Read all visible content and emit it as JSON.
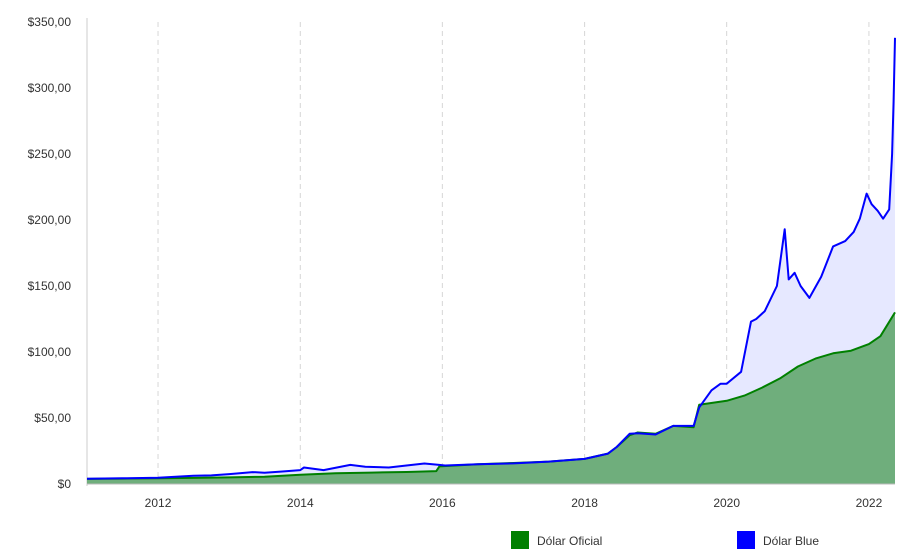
{
  "chart_data": {
    "type": "area",
    "x_type": "date",
    "xlim": [
      "2011-01-01",
      "2022-05-15"
    ],
    "ylim": [
      0,
      350
    ],
    "y_ticks": [
      {
        "value": 0,
        "label": "$0"
      },
      {
        "value": 50,
        "label": "$50,00"
      },
      {
        "value": 100,
        "label": "$100,00"
      },
      {
        "value": 150,
        "label": "$150,00"
      },
      {
        "value": 200,
        "label": "$200,00"
      },
      {
        "value": 250,
        "label": "$250,00"
      },
      {
        "value": 300,
        "label": "$300,00"
      },
      {
        "value": 350,
        "label": "$350,00"
      }
    ],
    "x_ticks": [
      {
        "value": "2012-01-01",
        "label": "2012"
      },
      {
        "value": "2014-01-01",
        "label": "2014"
      },
      {
        "value": "2016-01-01",
        "label": "2016"
      },
      {
        "value": "2018-01-01",
        "label": "2018"
      },
      {
        "value": "2020-01-01",
        "label": "2020"
      },
      {
        "value": "2022-01-01",
        "label": "2022"
      }
    ],
    "vertical_grid": true,
    "legend_position": "bottom",
    "series": [
      {
        "name": "Dólar Oficial",
        "color": "#008000",
        "fill": "#6fae7c",
        "points": [
          [
            "2011-01-01",
            3.9
          ],
          [
            "2011-07-01",
            4.1
          ],
          [
            "2012-01-01",
            4.3
          ],
          [
            "2012-07-01",
            4.6
          ],
          [
            "2013-01-01",
            5.0
          ],
          [
            "2013-07-01",
            5.5
          ],
          [
            "2014-01-01",
            7.0
          ],
          [
            "2014-07-01",
            8.1
          ],
          [
            "2015-01-01",
            8.6
          ],
          [
            "2015-07-01",
            9.1
          ],
          [
            "2015-12-01",
            9.8
          ],
          [
            "2015-12-17",
            13.3
          ],
          [
            "2016-07-01",
            15.0
          ],
          [
            "2017-01-01",
            15.9
          ],
          [
            "2017-07-01",
            17.0
          ],
          [
            "2018-01-01",
            19.0
          ],
          [
            "2018-05-01",
            23.0
          ],
          [
            "2018-06-15",
            28.0
          ],
          [
            "2018-08-20",
            37.0
          ],
          [
            "2018-10-01",
            39.0
          ],
          [
            "2019-01-01",
            38.0
          ],
          [
            "2019-04-01",
            44.0
          ],
          [
            "2019-07-15",
            43.0
          ],
          [
            "2019-08-13",
            60.0
          ],
          [
            "2020-01-01",
            63.0
          ],
          [
            "2020-04-01",
            67.0
          ],
          [
            "2020-07-01",
            73.0
          ],
          [
            "2020-10-01",
            80.0
          ],
          [
            "2021-01-01",
            89.0
          ],
          [
            "2021-04-01",
            95.0
          ],
          [
            "2021-07-01",
            99.0
          ],
          [
            "2021-10-01",
            101.0
          ],
          [
            "2022-01-01",
            106.0
          ],
          [
            "2022-03-01",
            112.0
          ],
          [
            "2022-05-15",
            130.0
          ]
        ]
      },
      {
        "name": "Dólar Blue",
        "color": "#0000ff",
        "fill": "#e6e8ff",
        "points": [
          [
            "2011-01-01",
            4.0
          ],
          [
            "2011-07-01",
            4.3
          ],
          [
            "2012-01-01",
            4.7
          ],
          [
            "2012-04-01",
            5.5
          ],
          [
            "2012-07-01",
            6.3
          ],
          [
            "2012-10-01",
            6.5
          ],
          [
            "2013-01-01",
            7.5
          ],
          [
            "2013-05-01",
            9.0
          ],
          [
            "2013-07-01",
            8.5
          ],
          [
            "2013-10-01",
            9.5
          ],
          [
            "2014-01-01",
            10.5
          ],
          [
            "2014-01-20",
            12.5
          ],
          [
            "2014-05-01",
            10.5
          ],
          [
            "2014-09-15",
            14.5
          ],
          [
            "2014-12-01",
            13.0
          ],
          [
            "2015-04-01",
            12.5
          ],
          [
            "2015-07-01",
            14.0
          ],
          [
            "2015-10-01",
            15.5
          ],
          [
            "2015-12-16",
            14.5
          ],
          [
            "2016-01-15",
            14.0
          ],
          [
            "2016-07-01",
            15.0
          ],
          [
            "2017-01-01",
            15.6
          ],
          [
            "2017-07-01",
            17.0
          ],
          [
            "2018-01-01",
            19.0
          ],
          [
            "2018-05-01",
            23.0
          ],
          [
            "2018-06-15",
            28.0
          ],
          [
            "2018-08-20",
            38.0
          ],
          [
            "2018-10-01",
            38.5
          ],
          [
            "2019-01-01",
            37.5
          ],
          [
            "2019-04-01",
            44.0
          ],
          [
            "2019-07-15",
            44.0
          ],
          [
            "2019-08-13",
            58.0
          ],
          [
            "2019-10-15",
            71.0
          ],
          [
            "2019-12-01",
            76.0
          ],
          [
            "2020-01-01",
            76.0
          ],
          [
            "2020-03-15",
            85.0
          ],
          [
            "2020-05-05",
            123.0
          ],
          [
            "2020-06-01",
            125.0
          ],
          [
            "2020-07-15",
            131.0
          ],
          [
            "2020-09-15",
            150.0
          ],
          [
            "2020-10-25",
            193.0
          ],
          [
            "2020-11-15",
            155.0
          ],
          [
            "2020-12-15",
            160.0
          ],
          [
            "2021-01-15",
            150.0
          ],
          [
            "2021-03-01",
            141.0
          ],
          [
            "2021-05-01",
            157.0
          ],
          [
            "2021-07-01",
            180.0
          ],
          [
            "2021-09-01",
            184.0
          ],
          [
            "2021-10-15",
            191.0
          ],
          [
            "2021-11-15",
            201.0
          ],
          [
            "2021-12-20",
            220.0
          ],
          [
            "2022-01-15",
            212.0
          ],
          [
            "2022-02-15",
            207.0
          ],
          [
            "2022-03-15",
            201.0
          ],
          [
            "2022-04-15",
            208.0
          ],
          [
            "2022-04-30",
            250.0
          ],
          [
            "2022-05-08",
            290.0
          ],
          [
            "2022-05-15",
            338.0
          ]
        ]
      }
    ]
  }
}
